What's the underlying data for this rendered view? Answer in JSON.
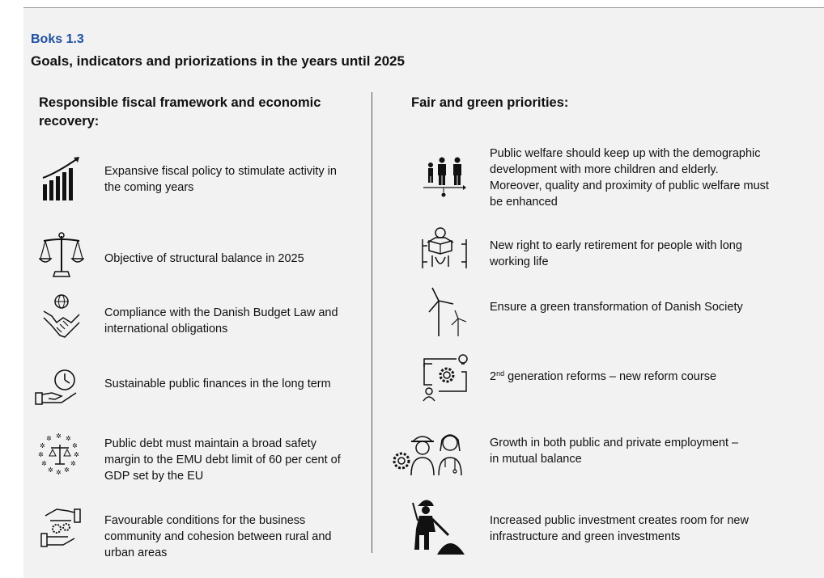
{
  "header": {
    "box_label": "Boks 1.3",
    "title": "Goals, indicators and priorizations in the years until 2025"
  },
  "left_column": {
    "heading": "Responsible fiscal framework and economic recovery:",
    "items": [
      {
        "icon": "growth-bars-icon",
        "text": "Expansive fiscal policy to stimulate activity in the coming years"
      },
      {
        "icon": "scales-icon",
        "text": "Objective of structural balance in 2025"
      },
      {
        "icon": "handshake-globe-icon",
        "text": "Compliance with the Danish Budget Law and international obligations"
      },
      {
        "icon": "clock-in-hand-icon",
        "text": "Sustainable public finances in the long term"
      },
      {
        "icon": "eu-stars-scales-icon",
        "text": "Public debt must maintain a broad safety margin to the EMU debt limit of 60 per cent of GDP set by the EU"
      },
      {
        "icon": "gears-hands-icon",
        "text": "Favourable conditions for the business community and cohesion between rural and urban areas"
      }
    ]
  },
  "right_column": {
    "heading": "Fair and green priorities:",
    "items": [
      {
        "icon": "family-timeline-icon",
        "text": "Public welfare should keep up with the demographic development with more children and elderly. Moreover, quality and proximity of public welfare must be enhanced"
      },
      {
        "icon": "elderly-reading-icon",
        "text": "New right to early retirement for people with long working life"
      },
      {
        "icon": "wind-turbines-icon",
        "text": "Ensure a green transformation of Danish Society"
      },
      {
        "icon": "reform-gear-bulb-icon",
        "text_sup": "nd",
        "text_pre": "2",
        "text_post": " generation reforms –  new reform course"
      },
      {
        "icon": "workers-icon",
        "text": "Growth in both public and private employment – in mutual balance"
      },
      {
        "icon": "construction-worker-icon",
        "text": "Increased public investment creates room for new infrastructure and green investments"
      }
    ]
  }
}
